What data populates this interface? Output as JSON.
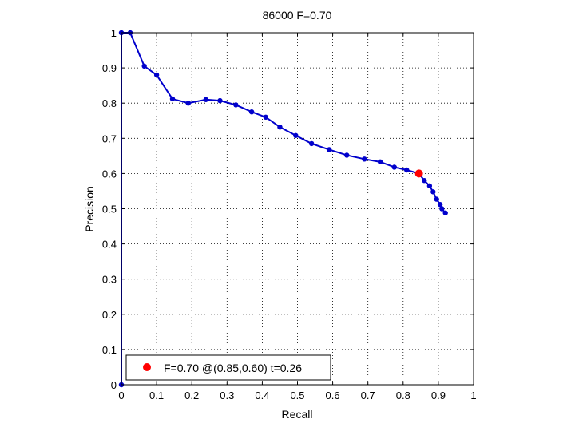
{
  "chart_data": {
    "type": "line",
    "title": "86000 F=0.70",
    "xlabel": "Recall",
    "ylabel": "Precision",
    "xlim": [
      0,
      1
    ],
    "ylim": [
      0,
      1
    ],
    "xticks": [
      0,
      0.1,
      0.2,
      0.3,
      0.4,
      0.5,
      0.6,
      0.7,
      0.8,
      0.9,
      1
    ],
    "yticks": [
      0,
      0.1,
      0.2,
      0.3,
      0.4,
      0.5,
      0.6,
      0.7,
      0.8,
      0.9,
      1
    ],
    "xtick_labels": [
      "0",
      "0.1",
      "0.2",
      "0.3",
      "0.4",
      "0.5",
      "0.6",
      "0.7",
      "0.8",
      "0.9",
      "1"
    ],
    "ytick_labels": [
      "0",
      "0.1",
      "0.2",
      "0.3",
      "0.4",
      "0.5",
      "0.6",
      "0.7",
      "0.8",
      "0.9",
      "1"
    ],
    "grid": true,
    "grid_style": "dotted",
    "legend_position": "bottom-left",
    "series": [
      {
        "color": "#0000cc",
        "x": [
          0.0,
          0.0,
          0.025,
          0.065,
          0.1,
          0.145,
          0.19,
          0.24,
          0.28,
          0.325,
          0.37,
          0.41,
          0.45,
          0.495,
          0.54,
          0.59,
          0.64,
          0.69,
          0.735,
          0.775,
          0.81,
          0.845,
          0.86,
          0.875,
          0.885,
          0.895,
          0.905,
          0.91,
          0.92
        ],
        "y": [
          0.0,
          1.0,
          1.0,
          0.905,
          0.88,
          0.812,
          0.8,
          0.81,
          0.807,
          0.795,
          0.775,
          0.76,
          0.732,
          0.708,
          0.685,
          0.668,
          0.652,
          0.641,
          0.633,
          0.618,
          0.61,
          0.6,
          0.58,
          0.565,
          0.548,
          0.527,
          0.512,
          0.5,
          0.488
        ]
      }
    ],
    "best_point": {
      "x": 0.845,
      "y": 0.6,
      "color": "#ff0000",
      "legend_label": "F=0.70 @(0.85,0.60) t=0.26"
    }
  }
}
